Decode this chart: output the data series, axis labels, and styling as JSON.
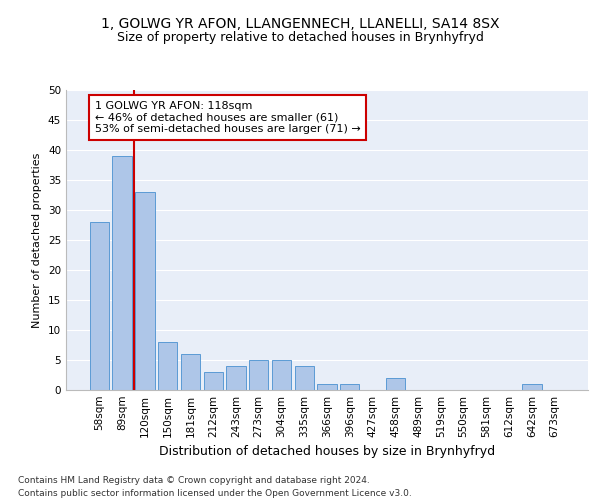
{
  "title": "1, GOLWG YR AFON, LLANGENNECH, LLANELLI, SA14 8SX",
  "subtitle": "Size of property relative to detached houses in Brynhyfryd",
  "xlabel": "Distribution of detached houses by size in Brynhyfryd",
  "ylabel": "Number of detached properties",
  "categories": [
    "58sqm",
    "89sqm",
    "120sqm",
    "150sqm",
    "181sqm",
    "212sqm",
    "243sqm",
    "273sqm",
    "304sqm",
    "335sqm",
    "366sqm",
    "396sqm",
    "427sqm",
    "458sqm",
    "489sqm",
    "519sqm",
    "550sqm",
    "581sqm",
    "612sqm",
    "642sqm",
    "673sqm"
  ],
  "values": [
    28,
    39,
    33,
    8,
    6,
    3,
    4,
    5,
    5,
    4,
    1,
    1,
    0,
    2,
    0,
    0,
    0,
    0,
    0,
    1,
    0
  ],
  "bar_color": "#aec6e8",
  "bar_edge_color": "#5b9bd5",
  "vline_color": "#cc0000",
  "vline_x": 1.5,
  "annotation_line1": "1 GOLWG YR AFON: 118sqm",
  "annotation_line2": "← 46% of detached houses are smaller (61)",
  "annotation_line3": "53% of semi-detached houses are larger (71) →",
  "annotation_box_color": "#ffffff",
  "annotation_box_edge": "#cc0000",
  "ylim": [
    0,
    50
  ],
  "yticks": [
    0,
    5,
    10,
    15,
    20,
    25,
    30,
    35,
    40,
    45,
    50
  ],
  "bg_color": "#e8eef8",
  "grid_color": "#ffffff",
  "footer": "Contains HM Land Registry data © Crown copyright and database right 2024.\nContains public sector information licensed under the Open Government Licence v3.0.",
  "title_fontsize": 10,
  "subtitle_fontsize": 9,
  "xlabel_fontsize": 9,
  "ylabel_fontsize": 8,
  "tick_fontsize": 7.5,
  "annotation_fontsize": 8,
  "footer_fontsize": 6.5
}
